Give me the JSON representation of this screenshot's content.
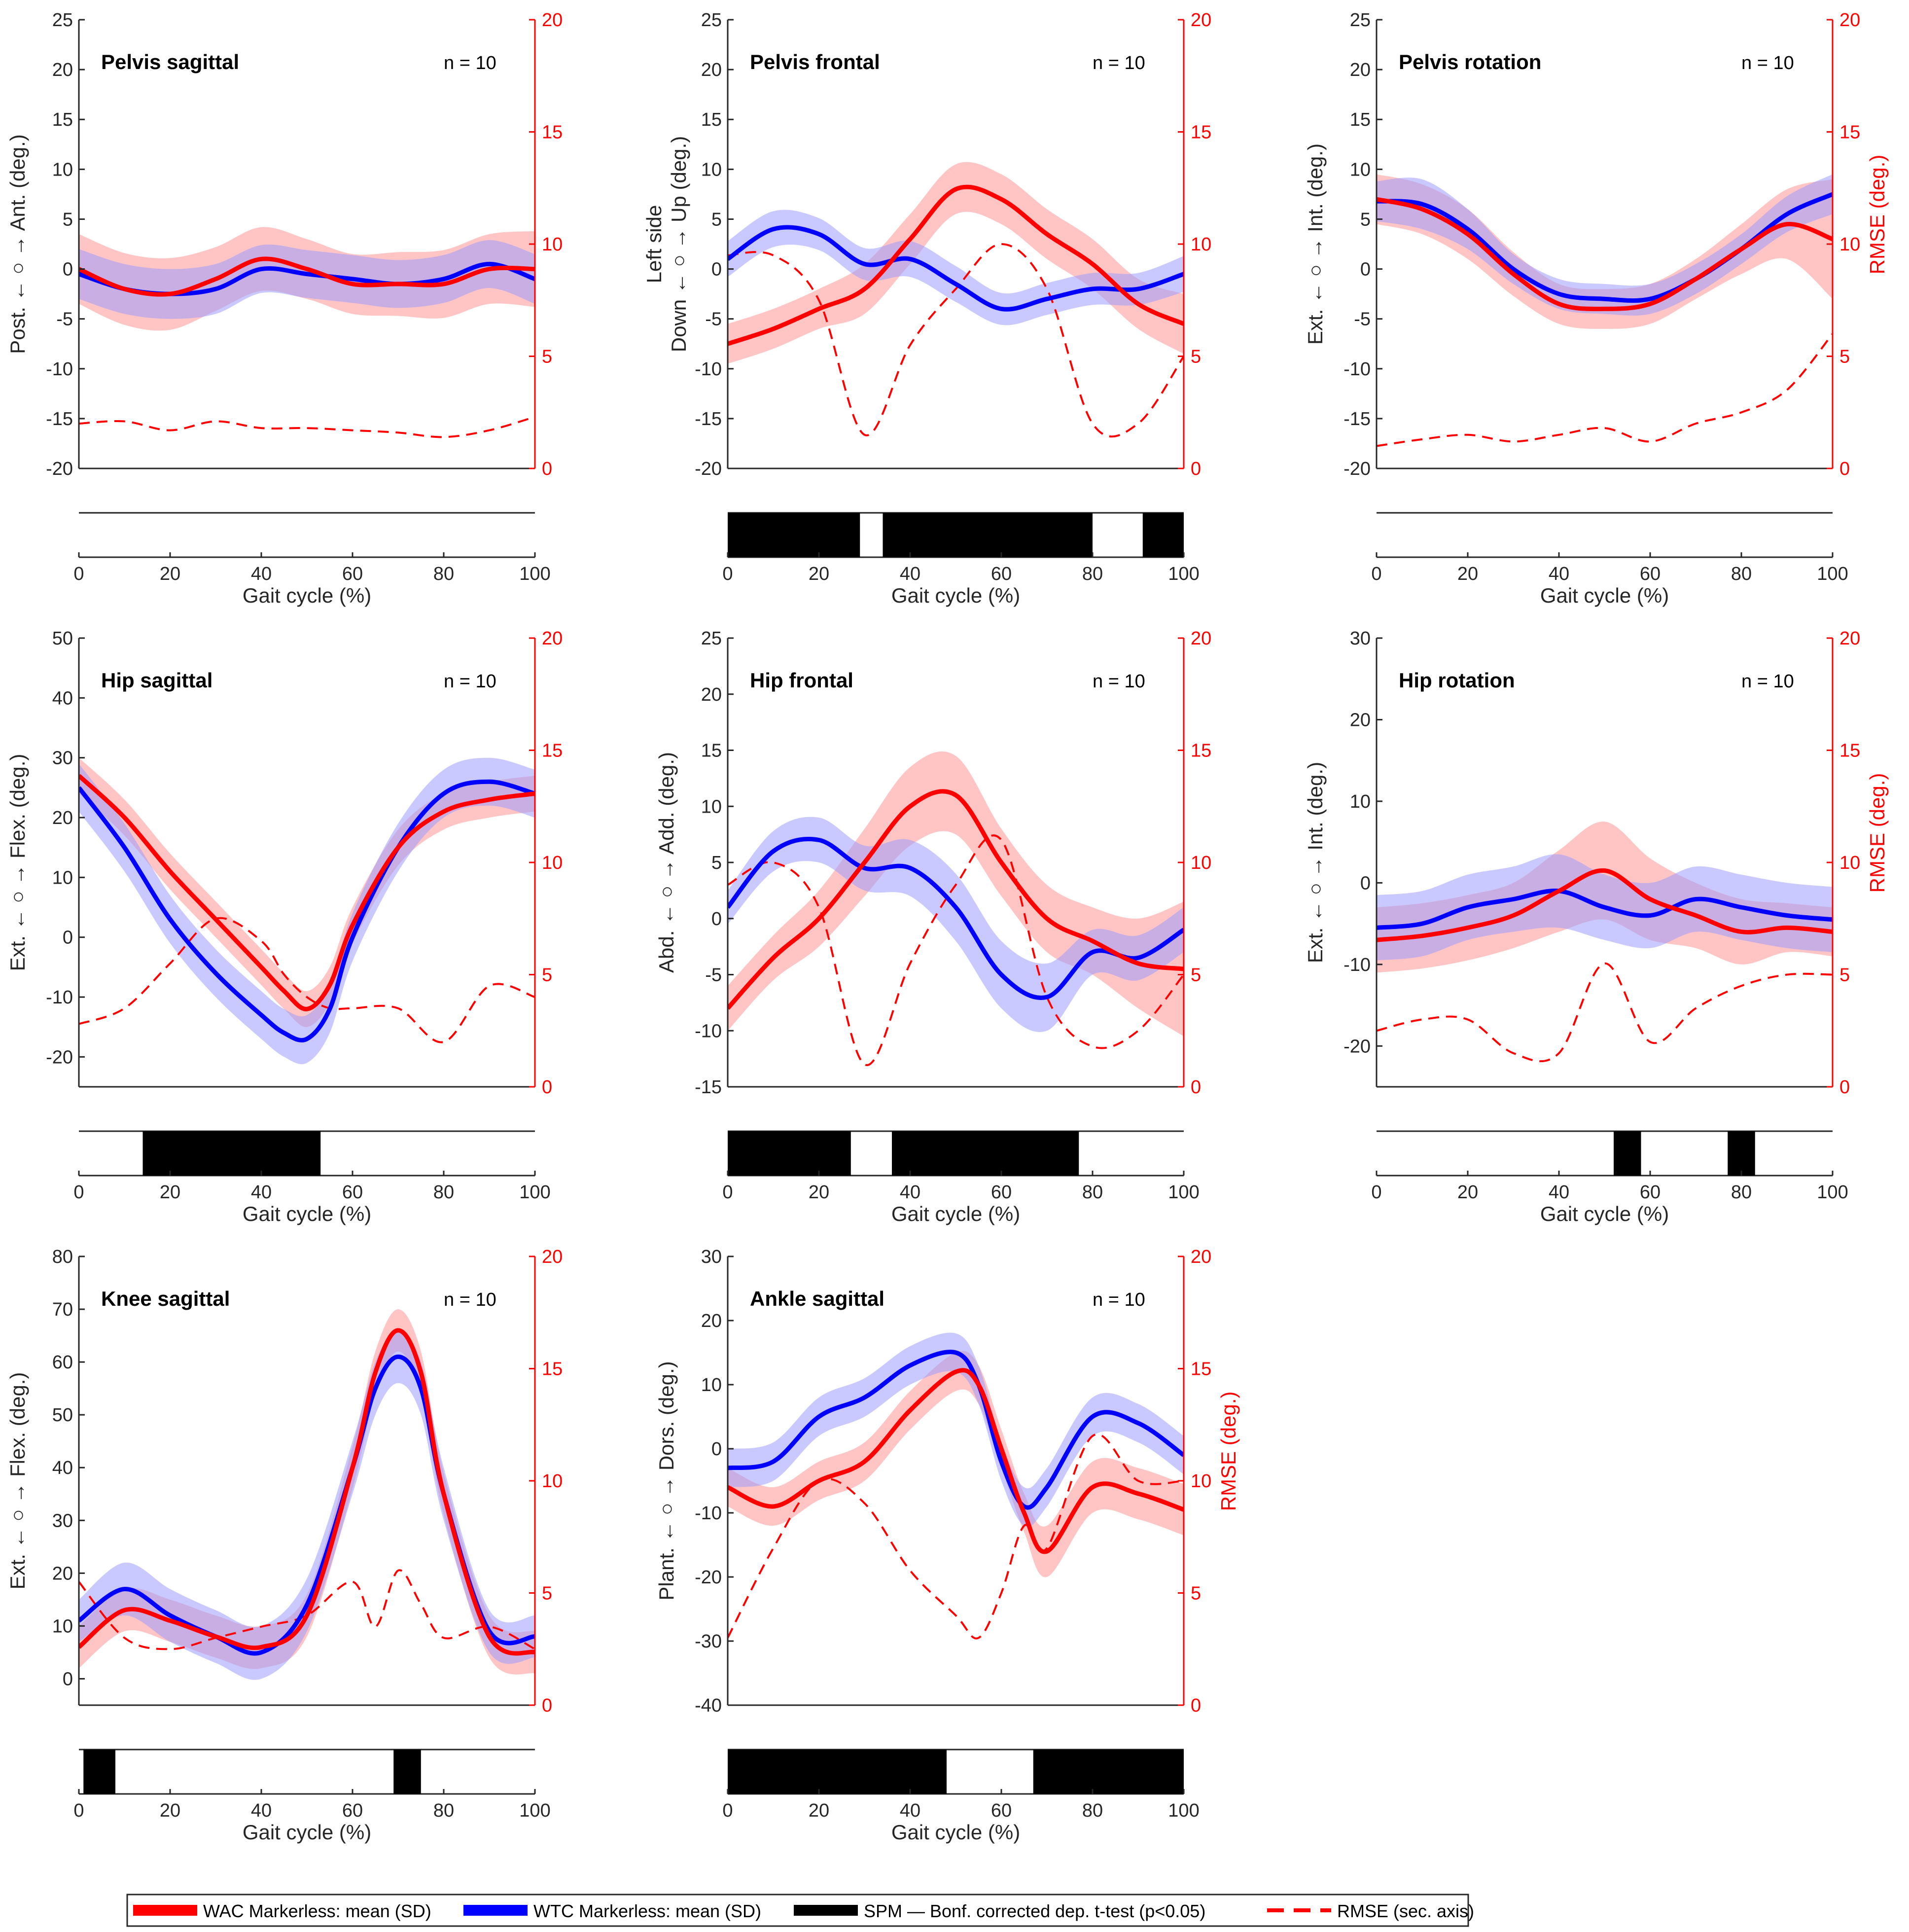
{
  "colors": {
    "wac": "#ff0000",
    "wtc": "#0000ff",
    "spm": "#000000",
    "axis": "#262626",
    "wac_band": "#ff9d9d",
    "wtc_band": "#9d9dff"
  },
  "legend": {
    "wac": "WAC Markerless: mean (SD)",
    "wtc": "WTC Markerless: mean (SD)",
    "spm": "SPM — Bonf. corrected dep. t-test (p<0.05)",
    "rmse": "RMSE (sec. axis)"
  },
  "chart_data": [
    {
      "type": "line",
      "title": "Pelvis sagittal",
      "n_label": "n = 10",
      "ylabel": [
        "Post. ← ○ → Ant. (deg.)"
      ],
      "y2label": "",
      "ylim": [
        -20,
        25
      ],
      "yticks": [
        -20,
        -15,
        -10,
        -5,
        0,
        5,
        10,
        15,
        20,
        25
      ],
      "y2lim": [
        0,
        20
      ],
      "y2ticks": [
        0,
        5,
        10,
        15,
        20
      ],
      "xlim": [
        0,
        100
      ],
      "xticks": [
        0,
        20,
        40,
        60,
        80,
        100
      ],
      "xlabel": "Gait cycle (%)",
      "x": [
        0,
        10,
        20,
        30,
        40,
        50,
        60,
        70,
        80,
        90,
        100
      ],
      "series": [
        {
          "name": "WAC Markerless",
          "mean": [
            0,
            -2,
            -2.5,
            -1,
            1,
            0,
            -1.5,
            -1.5,
            -1.5,
            0,
            0
          ],
          "sd": [
            3.5,
            3.6,
            3.6,
            3.2,
            3.2,
            3,
            3,
            3.2,
            3.4,
            3.5,
            3.8
          ]
        },
        {
          "name": "WTC Markerless",
          "mean": [
            -0.5,
            -2,
            -2.5,
            -2,
            0,
            -0.5,
            -1,
            -1.5,
            -1,
            0.5,
            -1
          ],
          "sd": [
            2.5,
            2.5,
            2.5,
            2.5,
            2.4,
            2.4,
            2.4,
            2.4,
            2.4,
            2.4,
            2.5
          ]
        }
      ],
      "rmse": [
        2,
        2.1,
        1.7,
        2.1,
        1.8,
        1.8,
        1.7,
        1.6,
        1.4,
        1.7,
        2.3
      ],
      "spm": []
    },
    {
      "type": "line",
      "title": "Pelvis frontal",
      "n_label": "n = 10",
      "ylabel": [
        "Left side",
        "Down ← ○ → Up  (deg.)"
      ],
      "y2label": "",
      "ylim": [
        -20,
        25
      ],
      "yticks": [
        -20,
        -15,
        -10,
        -5,
        0,
        5,
        10,
        15,
        20,
        25
      ],
      "y2lim": [
        0,
        20
      ],
      "y2ticks": [
        0,
        5,
        10,
        15,
        20
      ],
      "xlim": [
        0,
        100
      ],
      "xticks": [
        0,
        20,
        40,
        60,
        80,
        100
      ],
      "xlabel": "Gait cycle (%)",
      "x": [
        0,
        10,
        20,
        30,
        40,
        50,
        60,
        70,
        80,
        90,
        100
      ],
      "series": [
        {
          "name": "WAC Markerless",
          "mean": [
            -7.5,
            -6,
            -4,
            -2,
            3,
            8,
            7,
            3.5,
            0.5,
            -3.5,
            -5.5
          ],
          "sd": [
            2,
            2,
            2,
            2.5,
            2.5,
            2.5,
            2.5,
            2.5,
            2.5,
            2.5,
            3
          ]
        },
        {
          "name": "WTC Markerless",
          "mean": [
            1,
            4,
            3.5,
            0.5,
            1,
            -1.5,
            -4,
            -3,
            -2,
            -2,
            -0.5
          ],
          "sd": [
            1.8,
            1.8,
            1.6,
            1.6,
            1.8,
            1.8,
            1.6,
            1.6,
            1.6,
            1.6,
            1.8
          ]
        }
      ],
      "rmse": [
        9.5,
        9.5,
        7.5,
        1.5,
        5.5,
        8,
        10,
        8,
        2,
        2,
        5
      ],
      "spm": [
        [
          0,
          29
        ],
        [
          34,
          80
        ],
        [
          91,
          100
        ]
      ]
    },
    {
      "type": "line",
      "title": "Pelvis rotation",
      "n_label": "n = 10",
      "ylabel": [
        "Ext. ← ○ → Int.  (deg.)"
      ],
      "y2label": "RMSE (deg.)",
      "ylim": [
        -20,
        25
      ],
      "yticks": [
        -20,
        -15,
        -10,
        -5,
        0,
        5,
        10,
        15,
        20,
        25
      ],
      "y2lim": [
        0,
        20
      ],
      "y2ticks": [
        0,
        5,
        10,
        15,
        20
      ],
      "xlim": [
        0,
        100
      ],
      "xticks": [
        0,
        20,
        40,
        60,
        80,
        100
      ],
      "xlabel": "Gait cycle (%)",
      "x": [
        0,
        10,
        20,
        30,
        40,
        50,
        60,
        70,
        80,
        90,
        100
      ],
      "series": [
        {
          "name": "WAC Markerless",
          "mean": [
            7,
            6,
            3.5,
            -0.5,
            -3.5,
            -4,
            -3.5,
            -1,
            2,
            4.5,
            3
          ],
          "sd": [
            2.5,
            2.5,
            2.5,
            2.2,
            2,
            2,
            2,
            2,
            2.5,
            3.5,
            6
          ]
        },
        {
          "name": "WTC Markerless",
          "mean": [
            6.8,
            6.5,
            4,
            0,
            -2.5,
            -3,
            -3,
            -1,
            2,
            5.5,
            7.5
          ],
          "sd": [
            2,
            2.5,
            2,
            1.5,
            1.5,
            1.5,
            1.5,
            1.5,
            1.5,
            1.8,
            2
          ]
        }
      ],
      "rmse": [
        1,
        1.3,
        1.5,
        1.2,
        1.5,
        1.8,
        1.2,
        2,
        2.5,
        3.5,
        6
      ],
      "spm": []
    },
    {
      "type": "line",
      "title": "Hip sagittal",
      "n_label": "n = 10",
      "ylabel": [
        "Ext. ← ○ → Flex. (deg.)"
      ],
      "y2label": "",
      "ylim": [
        -25,
        50
      ],
      "yticks": [
        -20,
        -10,
        0,
        10,
        20,
        30,
        40,
        50
      ],
      "y2lim": [
        0,
        20
      ],
      "y2ticks": [
        0,
        5,
        10,
        15,
        20
      ],
      "xlim": [
        0,
        100
      ],
      "xticks": [
        0,
        20,
        40,
        60,
        80,
        100
      ],
      "xlabel": "Gait cycle (%)",
      "x": [
        0,
        10,
        20,
        30,
        40,
        45,
        50,
        55,
        60,
        70,
        80,
        90,
        100
      ],
      "series": [
        {
          "name": "WAC Markerless",
          "mean": [
            27,
            20,
            11,
            3,
            -5,
            -9,
            -12,
            -8,
            2,
            15,
            21,
            23,
            24
          ],
          "sd": [
            3,
            3,
            3,
            3,
            3,
            3,
            3,
            3,
            3,
            3,
            3,
            3,
            3
          ]
        },
        {
          "name": "WTC Markerless",
          "mean": [
            25,
            15,
            3,
            -6,
            -13,
            -16,
            -17,
            -12,
            0,
            15,
            24,
            26,
            24
          ],
          "sd": [
            4,
            4,
            4,
            4,
            4,
            4,
            4,
            4,
            4,
            4,
            4,
            4,
            4
          ]
        }
      ],
      "rmse": [
        2.8,
        3.5,
        5.5,
        7.5,
        6.5,
        5,
        4,
        3.5,
        3.5,
        3.5,
        2,
        4.5,
        4
      ],
      "spm": [
        [
          14,
          53
        ]
      ]
    },
    {
      "type": "line",
      "title": "Hip frontal",
      "n_label": "n = 10",
      "ylabel": [
        "Abd. ← ○ → Add. (deg.)"
      ],
      "y2label": "",
      "ylim": [
        -15,
        25
      ],
      "yticks": [
        -15,
        -10,
        -5,
        0,
        5,
        10,
        15,
        20,
        25
      ],
      "y2lim": [
        0,
        20
      ],
      "y2ticks": [
        0,
        5,
        10,
        15,
        20
      ],
      "xlim": [
        0,
        100
      ],
      "xticks": [
        0,
        20,
        40,
        60,
        80,
        100
      ],
      "xlabel": "Gait cycle (%)",
      "x": [
        0,
        10,
        20,
        30,
        40,
        50,
        60,
        70,
        80,
        90,
        100
      ],
      "series": [
        {
          "name": "WAC Markerless",
          "mean": [
            -8,
            -3.5,
            0,
            5,
            10,
            11,
            5,
            0,
            -2,
            -4,
            -4.5
          ],
          "sd": [
            2,
            2,
            2.5,
            3,
            3.5,
            3.5,
            3,
            3,
            3,
            4,
            6
          ]
        },
        {
          "name": "WTC Markerless",
          "mean": [
            1,
            6,
            7,
            4.5,
            4.5,
            1,
            -5,
            -7,
            -3,
            -3.5,
            -1
          ],
          "sd": [
            1.5,
            1.8,
            2,
            2,
            2.5,
            3,
            3,
            3,
            2,
            2,
            2
          ]
        }
      ],
      "rmse": [
        9,
        10,
        8,
        1,
        5.5,
        9,
        11,
        4,
        1.8,
        2.5,
        5
      ],
      "spm": [
        [
          0,
          27
        ],
        [
          36,
          77
        ]
      ]
    },
    {
      "type": "line",
      "title": "Hip rotation",
      "n_label": "n = 10",
      "ylabel": [
        "Ext. ← ○ → Int.  (deg.)"
      ],
      "y2label": "RMSE (deg.)",
      "ylim": [
        -25,
        30
      ],
      "yticks": [
        -20,
        -10,
        0,
        10,
        20,
        30
      ],
      "y2lim": [
        0,
        20
      ],
      "y2ticks": [
        0,
        5,
        10,
        15,
        20
      ],
      "xlim": [
        0,
        100
      ],
      "xticks": [
        0,
        20,
        40,
        60,
        80,
        100
      ],
      "xlabel": "Gait cycle (%)",
      "x": [
        0,
        10,
        20,
        30,
        40,
        50,
        60,
        70,
        80,
        90,
        100
      ],
      "series": [
        {
          "name": "WAC Markerless",
          "mean": [
            -7,
            -6.5,
            -5.5,
            -4,
            -1,
            1.5,
            -2,
            -4,
            -6,
            -5.5,
            -6
          ],
          "sd": [
            4,
            4,
            4,
            4,
            5,
            6,
            5,
            4,
            4,
            3,
            3
          ]
        },
        {
          "name": "WTC Markerless",
          "mean": [
            -5.5,
            -5,
            -3,
            -2,
            -1,
            -3,
            -4,
            -2,
            -3,
            -4,
            -4.5
          ],
          "sd": [
            4,
            4,
            4,
            4,
            4.5,
            4,
            4,
            4,
            4,
            4,
            4
          ]
        }
      ],
      "rmse": [
        2.5,
        3,
        3,
        1.5,
        1.5,
        5.5,
        2,
        3.5,
        4.5,
        5,
        5
      ],
      "spm": [
        [
          52,
          58
        ],
        [
          77,
          83
        ]
      ]
    },
    {
      "type": "line",
      "title": "Knee sagittal",
      "n_label": "n = 10",
      "ylabel": [
        "Ext. ← ○ → Flex. (deg.)"
      ],
      "y2label": "",
      "ylim": [
        -5,
        80
      ],
      "yticks": [
        0,
        10,
        20,
        30,
        40,
        50,
        60,
        70,
        80
      ],
      "y2lim": [
        0,
        20
      ],
      "y2ticks": [
        0,
        5,
        10,
        15,
        20
      ],
      "xlim": [
        0,
        100
      ],
      "xticks": [
        0,
        20,
        40,
        60,
        80,
        100
      ],
      "xlabel": "Gait cycle (%)",
      "x": [
        0,
        10,
        20,
        30,
        40,
        50,
        60,
        65,
        70,
        75,
        80,
        90,
        100
      ],
      "series": [
        {
          "name": "WAC Markerless",
          "mean": [
            6,
            13,
            11,
            8,
            6,
            12,
            40,
            58,
            66,
            58,
            35,
            8,
            5
          ],
          "sd": [
            4,
            4,
            4,
            4,
            4,
            4,
            4,
            4,
            4,
            4,
            4,
            4,
            4
          ]
        },
        {
          "name": "WTC Markerless",
          "mean": [
            11,
            17,
            12,
            8,
            5,
            14,
            40,
            55,
            61,
            55,
            35,
            9,
            8
          ],
          "sd": [
            4,
            5,
            5,
            5,
            5,
            5,
            5,
            5,
            5,
            5,
            5,
            4,
            4
          ]
        }
      ],
      "rmse": [
        5.5,
        3,
        2.5,
        3,
        3.5,
        4,
        5.5,
        3.5,
        6,
        4.5,
        3,
        3.5,
        2.5
      ],
      "spm": [
        [
          1,
          8
        ],
        [
          69,
          75
        ]
      ]
    },
    {
      "type": "line",
      "title": "Ankle sagittal",
      "n_label": "n = 10",
      "ylabel": [
        "Plant. ← ○ → Dors. (deg.)"
      ],
      "y2label": "RMSE (deg.)",
      "ylim": [
        -40,
        30
      ],
      "yticks": [
        -40,
        -30,
        -20,
        -10,
        0,
        10,
        20,
        30
      ],
      "y2lim": [
        0,
        20
      ],
      "y2ticks": [
        0,
        5,
        10,
        15,
        20
      ],
      "xlim": [
        0,
        100
      ],
      "xticks": [
        0,
        20,
        40,
        60,
        80,
        100
      ],
      "xlabel": "Gait cycle (%)",
      "x": [
        0,
        10,
        20,
        30,
        40,
        50,
        55,
        60,
        65,
        70,
        80,
        90,
        100
      ],
      "series": [
        {
          "name": "WAC Markerless",
          "mean": [
            -6,
            -9,
            -5,
            -2,
            6,
            12,
            10,
            0,
            -10,
            -16,
            -6,
            -7,
            -9.5
          ],
          "sd": [
            3,
            3,
            3,
            3,
            3,
            3,
            3,
            3,
            3,
            4,
            4,
            4,
            4
          ]
        },
        {
          "name": "WTC Markerless",
          "mean": [
            -3,
            -2,
            5,
            8,
            13,
            15,
            10,
            -2,
            -9,
            -6,
            5,
            4,
            -1
          ],
          "sd": [
            3,
            3,
            3,
            3,
            3,
            3,
            3,
            3,
            3,
            3,
            3,
            3,
            3
          ]
        }
      ],
      "rmse": [
        3,
        7,
        10,
        9,
        6,
        4,
        3,
        5,
        8,
        7,
        12,
        10,
        10
      ],
      "spm": [
        [
          0,
          48
        ],
        [
          67,
          100
        ]
      ]
    }
  ]
}
